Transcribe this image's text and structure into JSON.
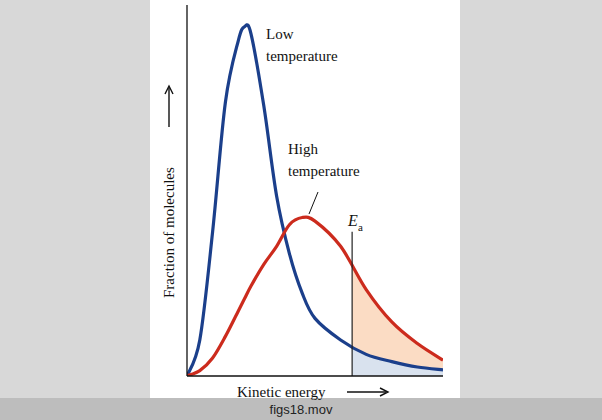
{
  "chart_data": {
    "type": "line",
    "x_label": "Kinetic energy",
    "y_label": "Fraction of molecules",
    "caption": "figs18.mov",
    "x": [
      0,
      0.5,
      1,
      1.5,
      2,
      2.25,
      2.5,
      3,
      3.5,
      4,
      4.5,
      5,
      6,
      7,
      8,
      9,
      10
    ],
    "series": [
      {
        "name": "Low temperature",
        "color": "#1b3f8b",
        "values": [
          0,
          10,
          40,
          76,
          93,
          97,
          95,
          75,
          50,
          34,
          23,
          16,
          10,
          6,
          4,
          2.5,
          1.7
        ]
      },
      {
        "name": "High temperature",
        "color": "#cc2b1d",
        "values": [
          0,
          1.5,
          5,
          11,
          18,
          21.5,
          25,
          31,
          36,
          42,
          44,
          43,
          36,
          24,
          15,
          9,
          4.4
        ]
      }
    ],
    "annotations": [
      {
        "text": "E",
        "sub": "a",
        "x": 6.45
      }
    ],
    "xlim": [
      0,
      10
    ],
    "ylim": [
      0,
      103
    ],
    "tick_labels": false,
    "grid": false
  }
}
